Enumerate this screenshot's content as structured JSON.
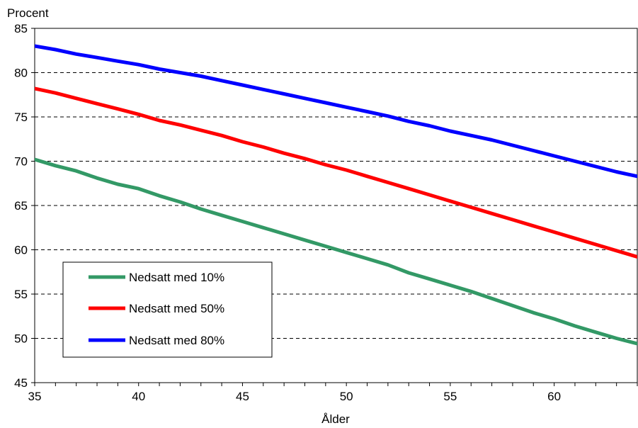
{
  "chart_data": {
    "type": "line",
    "title": "",
    "xlabel": "Ålder",
    "ylabel": "Procent",
    "xlim": [
      35,
      64
    ],
    "ylim": [
      45,
      85
    ],
    "xticks": [
      35,
      40,
      45,
      50,
      55,
      60
    ],
    "yticks": [
      45,
      50,
      55,
      60,
      65,
      70,
      75,
      80,
      85
    ],
    "grid": "horizontal dashed",
    "legend_position": "bottom-left",
    "x": [
      35,
      36,
      37,
      38,
      39,
      40,
      41,
      42,
      43,
      44,
      45,
      46,
      47,
      48,
      49,
      50,
      51,
      52,
      53,
      54,
      55,
      56,
      57,
      58,
      59,
      60,
      61,
      62,
      63,
      64
    ],
    "series": [
      {
        "name": "Nedsatt med 10%",
        "color": "#339966",
        "values": [
          70.2,
          69.5,
          68.9,
          68.1,
          67.4,
          66.9,
          66.1,
          65.4,
          64.6,
          63.9,
          63.2,
          62.5,
          61.8,
          61.1,
          60.4,
          59.7,
          59.0,
          58.3,
          57.4,
          56.7,
          56.0,
          55.3,
          54.5,
          53.7,
          52.9,
          52.2,
          51.4,
          50.7,
          50.0,
          49.4
        ]
      },
      {
        "name": "Nedsatt med 50%",
        "color": "#ff0000",
        "values": [
          78.2,
          77.7,
          77.1,
          76.5,
          75.9,
          75.3,
          74.6,
          74.1,
          73.5,
          72.9,
          72.2,
          71.6,
          70.9,
          70.3,
          69.6,
          69.0,
          68.3,
          67.6,
          66.9,
          66.2,
          65.5,
          64.8,
          64.1,
          63.4,
          62.7,
          62.0,
          61.3,
          60.6,
          59.9,
          59.2
        ]
      },
      {
        "name": "Nedsatt med 80%",
        "color": "#0000ff",
        "values": [
          83.0,
          82.6,
          82.1,
          81.7,
          81.3,
          80.9,
          80.4,
          80.0,
          79.6,
          79.1,
          78.6,
          78.1,
          77.6,
          77.1,
          76.6,
          76.1,
          75.6,
          75.1,
          74.5,
          74.0,
          73.4,
          72.9,
          72.4,
          71.8,
          71.2,
          70.6,
          70.0,
          69.4,
          68.8,
          68.3
        ]
      }
    ]
  }
}
